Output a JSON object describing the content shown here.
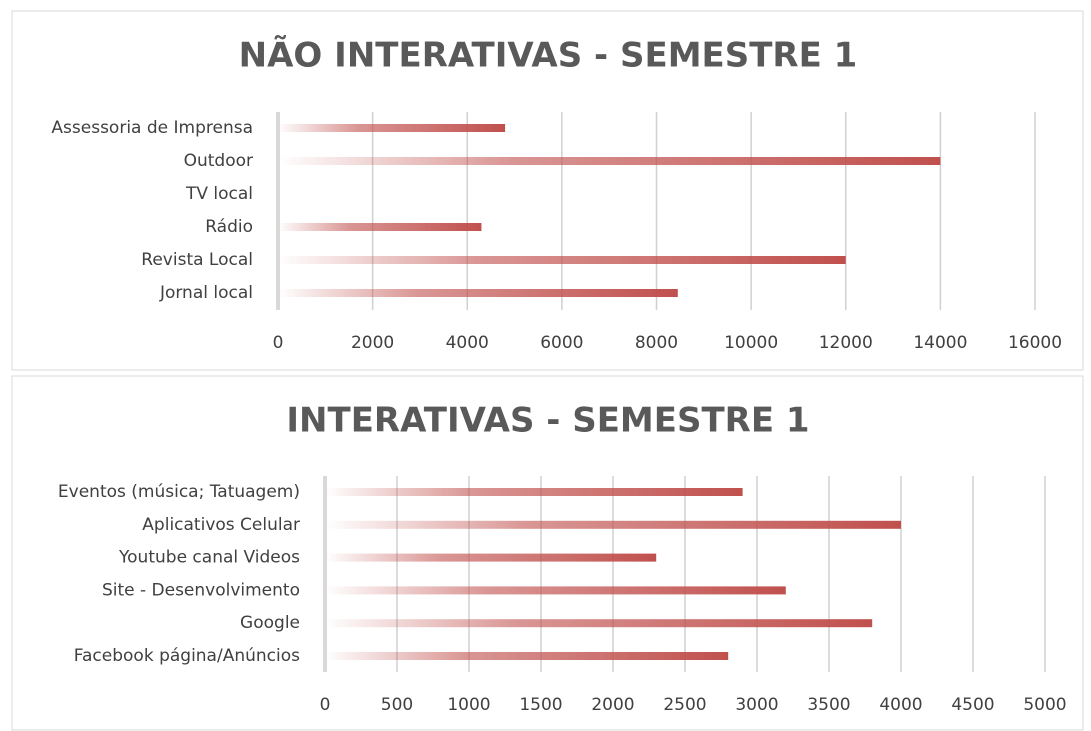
{
  "chart_data": [
    {
      "type": "barh",
      "title": "NÃO INTERATIVAS - SEMESTRE 1",
      "categories": [
        "Assessoria de Imprensa",
        "Outdoor",
        "TV local",
        "Rádio",
        "Revista Local",
        "Jornal local"
      ],
      "values": [
        4800,
        14000,
        0,
        4300,
        12000,
        8450
      ],
      "color": "#c0504d",
      "xlim": [
        0,
        16000
      ],
      "xticks": [
        0,
        2000,
        4000,
        6000,
        8000,
        10000,
        12000,
        14000,
        16000
      ],
      "grid": true
    },
    {
      "type": "barh",
      "title": "INTERATIVAS - SEMESTRE 1",
      "categories": [
        "Eventos (música; Tatuagem)",
        "Aplicativos Celular",
        "Youtube canal Videos",
        "Site - Desenvolvimento",
        "Google",
        "Facebook página/Anúncios"
      ],
      "values": [
        2900,
        4000,
        2300,
        3200,
        3800,
        2800
      ],
      "color": "#c0504d",
      "xlim": [
        0,
        5000
      ],
      "xticks": [
        0,
        500,
        1000,
        1500,
        2000,
        2500,
        3000,
        3500,
        4000,
        4500,
        5000
      ],
      "grid": true
    }
  ]
}
